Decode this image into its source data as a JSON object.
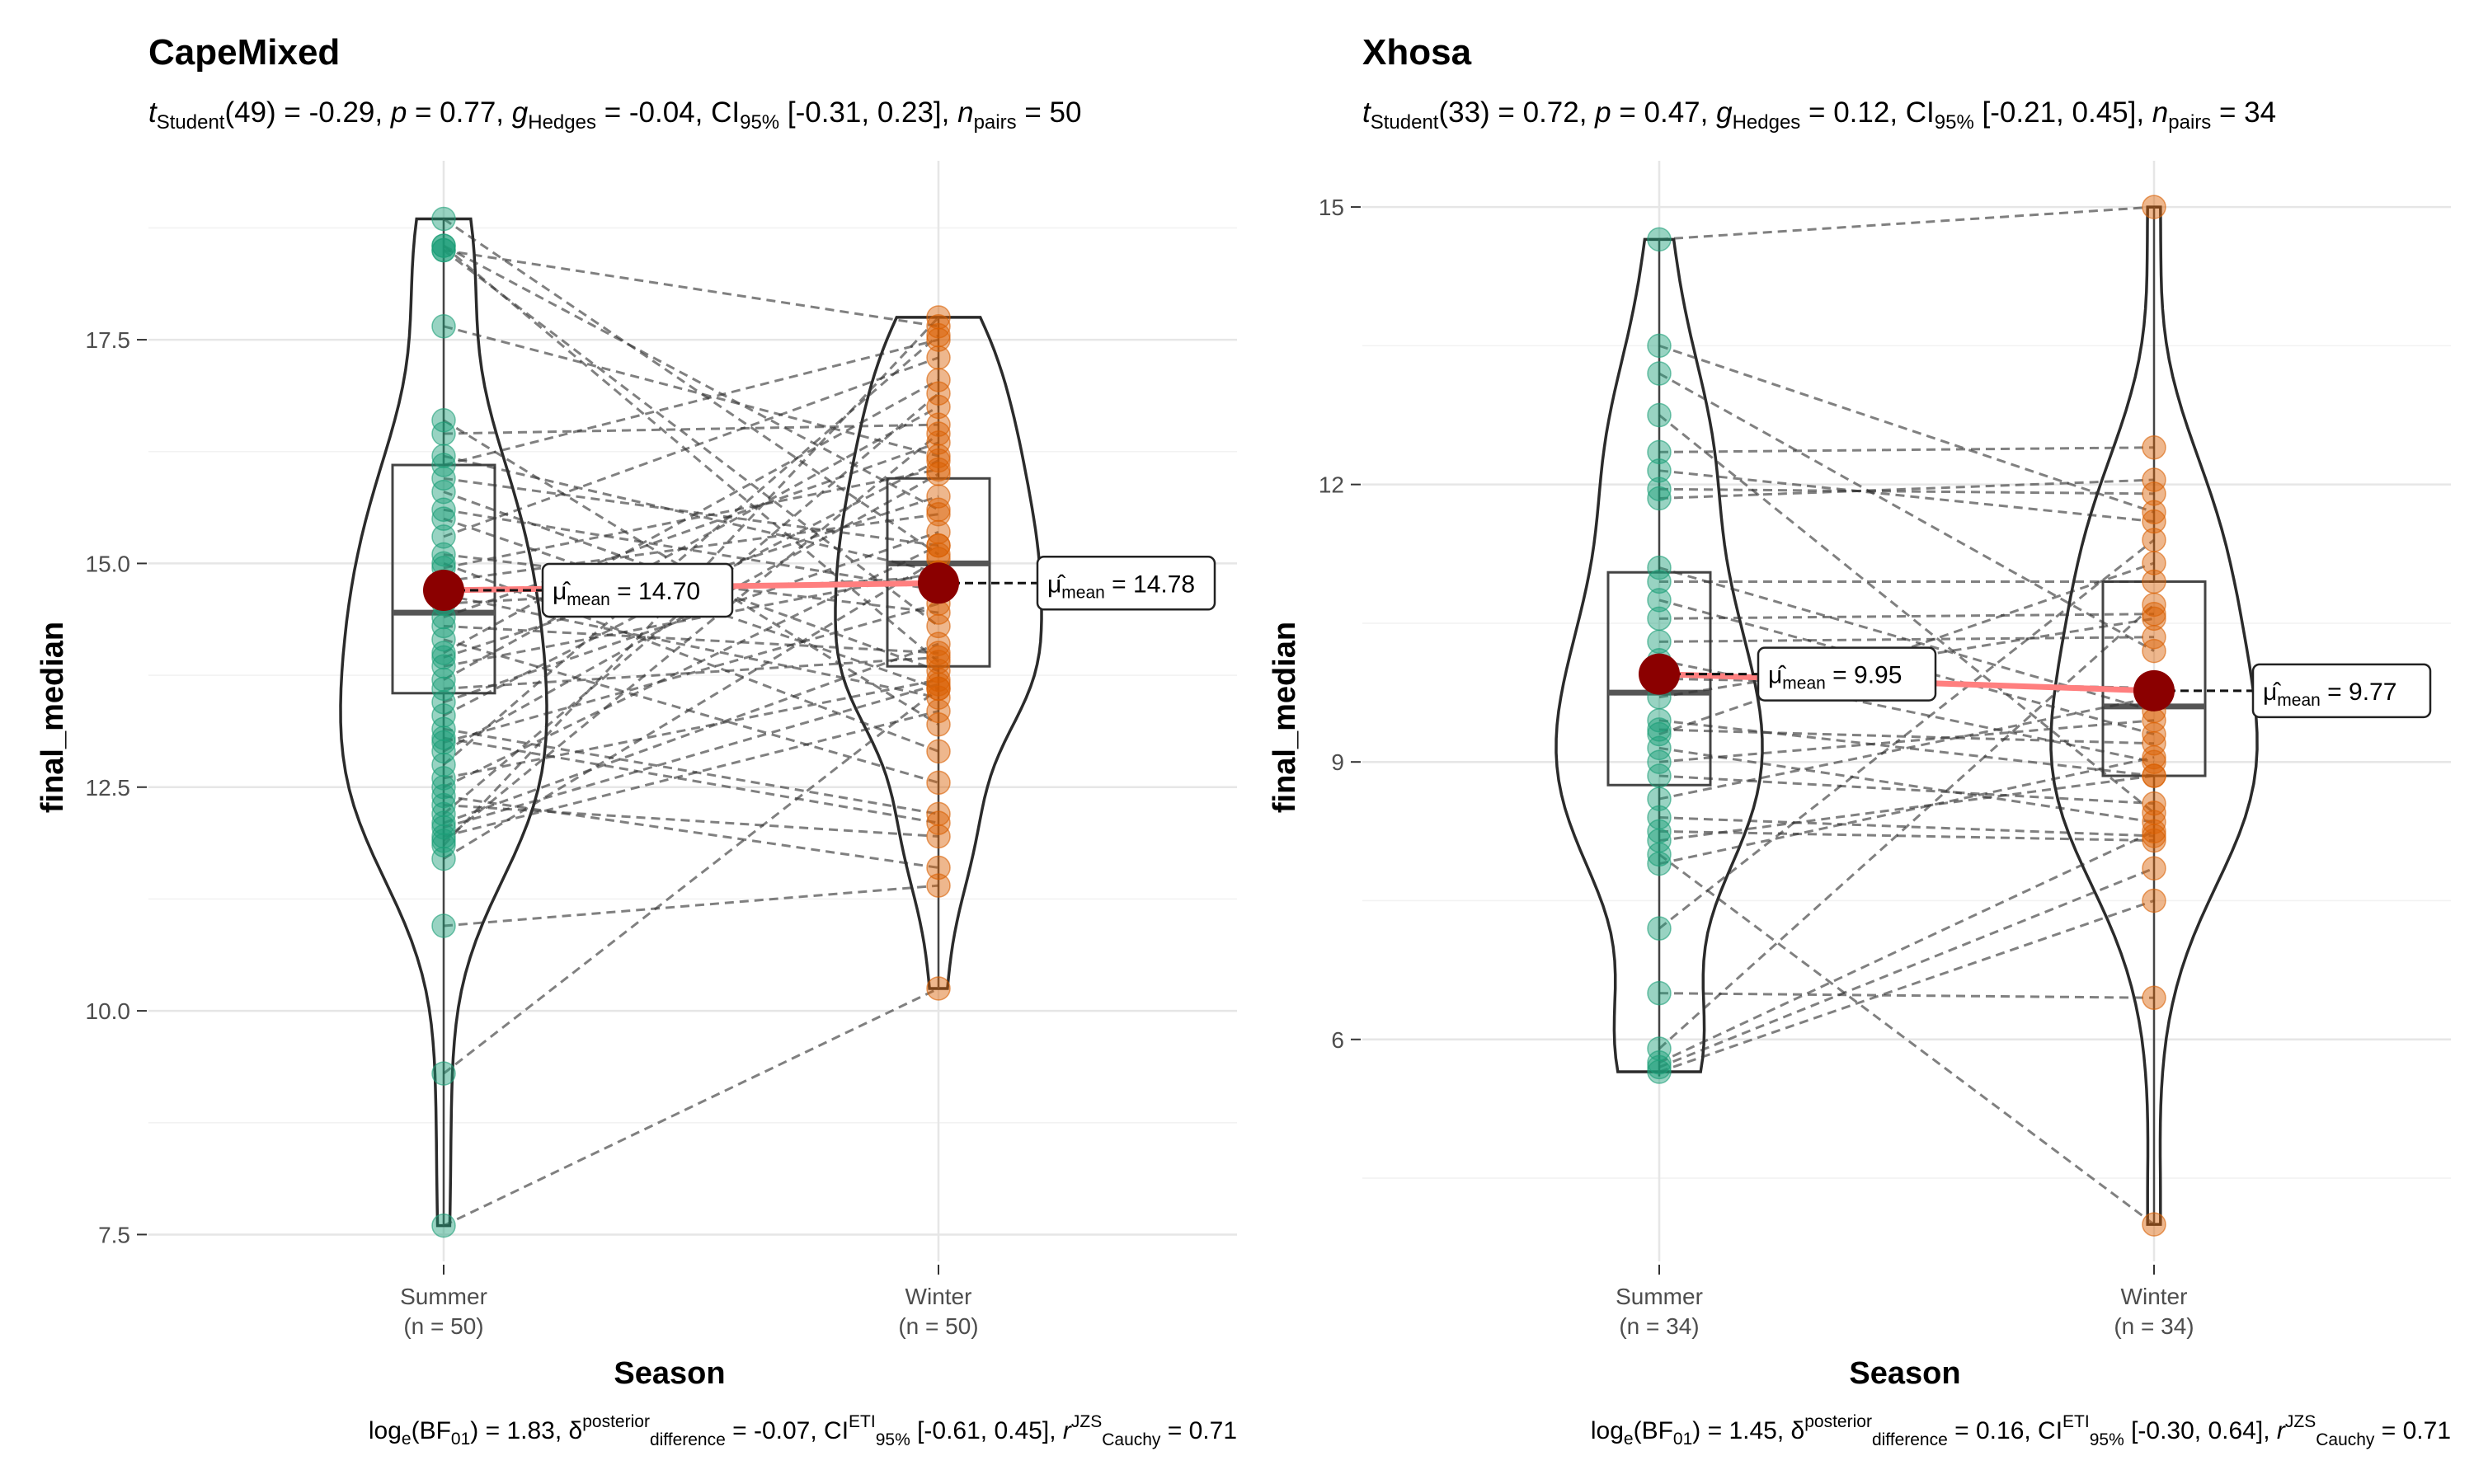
{
  "chart_data": [
    {
      "type": "violin-box-paired",
      "title": "CapeMixed",
      "subtitle": {
        "stat": "t",
        "stat_sub": "Student",
        "df": "(49) = -0.29, ",
        "p_prefix": "p",
        "p_text": " = 0.77, ",
        "es": "g",
        "es_sub": "Hedges",
        "es_text": " = -0.04, CI",
        "ci_sub": "95%",
        "ci_text": " [-0.31, 0.23], ",
        "n": "n",
        "n_sub": "pairs",
        "n_text": " = 50"
      },
      "caption": {
        "bf_prefix": "log",
        "bf_sub": "e",
        "bf_text": "(BF",
        "bf_idx": "01",
        "bf_val": ") = 1.83, ",
        "delta": "δ",
        "delta_sup": "posterior",
        "delta_sub": "difference",
        "delta_val": " = -0.07, CI",
        "ci_sup": "ETI",
        "ci_sub": "95%",
        "ci_val": " [-0.61, 0.45], ",
        "r": "r",
        "r_sup": "JZS",
        "r_sub": "Cauchy",
        "r_val": " = 0.71"
      },
      "xlabel": "Season",
      "ylabel": "final_median",
      "ylim": [
        7.2,
        19.5
      ],
      "yticks": [
        7.5,
        10.0,
        12.5,
        15.0,
        17.5
      ],
      "ytick_labels": [
        "7.5",
        "10.0",
        "12.5",
        "15.0",
        "17.5"
      ],
      "categories": [
        "Summer",
        "Winter"
      ],
      "category_n": [
        "(n = 50)",
        "(n = 50)"
      ],
      "colors": [
        "#1B9E77",
        "#D95F02"
      ],
      "box": [
        {
          "q1": 13.55,
          "median": 14.45,
          "q3": 16.1,
          "whisker_low": 7.6,
          "whisker_high": 18.85
        },
        {
          "q1": 13.85,
          "median": 15.0,
          "q3": 15.95,
          "whisker_low": 10.25,
          "whisker_high": 17.75
        }
      ],
      "means": [
        14.7,
        14.78
      ],
      "mean_labels": [
        "= 14.70",
        "= 14.78"
      ],
      "pairs": [
        [
          18.85,
          15.1
        ],
        [
          18.55,
          13.9
        ],
        [
          18.5,
          17.65
        ],
        [
          18.55,
          15.6
        ],
        [
          18.5,
          14.3
        ],
        [
          17.65,
          16.2
        ],
        [
          16.6,
          13.2
        ],
        [
          16.45,
          16.55
        ],
        [
          16.2,
          14.9
        ],
        [
          16.1,
          17.5
        ],
        [
          15.95,
          15.2
        ],
        [
          15.8,
          13.8
        ],
        [
          15.6,
          14.7
        ],
        [
          15.5,
          13.6
        ],
        [
          15.3,
          17.3
        ],
        [
          15.1,
          14.45
        ],
        [
          15.0,
          12.9
        ],
        [
          14.95,
          16.05
        ],
        [
          14.8,
          15.55
        ],
        [
          14.65,
          13.5
        ],
        [
          14.4,
          16.35
        ],
        [
          14.3,
          14.0
        ],
        [
          14.15,
          12.55
        ],
        [
          14.0,
          17.05
        ],
        [
          13.95,
          15.75
        ],
        [
          13.85,
          14.9
        ],
        [
          13.7,
          16.75
        ],
        [
          13.6,
          13.95
        ],
        [
          13.45,
          15.35
        ],
        [
          13.3,
          16.15
        ],
        [
          13.15,
          12.2
        ],
        [
          13.0,
          14.55
        ],
        [
          12.9,
          16.0
        ],
        [
          12.75,
          17.55
        ],
        [
          12.6,
          13.7
        ],
        [
          12.5,
          15.2
        ],
        [
          12.3,
          11.95
        ],
        [
          12.2,
          16.9
        ],
        [
          12.1,
          14.1
        ],
        [
          11.95,
          13.35
        ],
        [
          11.85,
          17.75
        ],
        [
          11.7,
          15.05
        ],
        [
          11.9,
          16.45
        ],
        [
          12.05,
          13.65
        ],
        [
          12.4,
          11.6
        ],
        [
          10.95,
          11.4
        ],
        [
          9.3,
          13.6
        ],
        [
          7.6,
          10.25
        ],
        [
          14.55,
          14.85
        ],
        [
          13.05,
          12.1
        ]
      ]
    },
    {
      "type": "violin-box-paired",
      "title": "Xhosa",
      "subtitle": {
        "stat": "t",
        "stat_sub": "Student",
        "df": "(33) = 0.72, ",
        "p_prefix": "p",
        "p_text": " = 0.47, ",
        "es": "g",
        "es_sub": "Hedges",
        "es_text": " = 0.12, CI",
        "ci_sub": "95%",
        "ci_text": " [-0.21, 0.45], ",
        "n": "n",
        "n_sub": "pairs",
        "n_text": " = 34"
      },
      "caption": {
        "bf_prefix": "log",
        "bf_sub": "e",
        "bf_text": "(BF",
        "bf_idx": "01",
        "bf_val": ") = 1.45, ",
        "delta": "δ",
        "delta_sup": "posterior",
        "delta_sub": "difference",
        "delta_val": " = 0.16, CI",
        "ci_sup": "ETI",
        "ci_sub": "95%",
        "ci_val": " [-0.30, 0.64], ",
        "r": "r",
        "r_sup": "JZS",
        "r_sub": "Cauchy",
        "r_val": " = 0.71"
      },
      "xlabel": "Season",
      "ylabel": "final_median",
      "ylim": [
        3.6,
        15.5
      ],
      "yticks": [
        6,
        9,
        12,
        15
      ],
      "ytick_labels": [
        "6",
        "9",
        "12",
        "15"
      ],
      "categories": [
        "Summer",
        "Winter"
      ],
      "category_n": [
        "(n = 34)",
        "(n = 34)"
      ],
      "colors": [
        "#1B9E77",
        "#D95F02"
      ],
      "box": [
        {
          "q1": 8.75,
          "median": 9.75,
          "q3": 11.05,
          "whisker_low": 5.6,
          "whisker_high": 14.65
        },
        {
          "q1": 8.85,
          "median": 9.6,
          "q3": 10.95,
          "whisker_low": 4.0,
          "whisker_high": 15.0
        }
      ],
      "means": [
        9.95,
        9.77
      ],
      "mean_labels": [
        "= 9.95",
        "= 9.77"
      ],
      "pairs": [
        [
          14.65,
          15.0
        ],
        [
          13.5,
          11.7
        ],
        [
          13.2,
          10.2
        ],
        [
          12.75,
          8.45
        ],
        [
          12.35,
          12.4
        ],
        [
          12.15,
          11.6
        ],
        [
          11.95,
          11.9
        ],
        [
          11.85,
          12.05
        ],
        [
          11.1,
          9.55
        ],
        [
          10.95,
          10.95
        ],
        [
          10.75,
          9.3
        ],
        [
          10.55,
          10.6
        ],
        [
          10.3,
          10.35
        ],
        [
          10.1,
          9.0
        ],
        [
          9.9,
          9.8
        ],
        [
          9.7,
          10.55
        ],
        [
          9.45,
          8.85
        ],
        [
          9.3,
          11.15
        ],
        [
          9.15,
          8.35
        ],
        [
          9.0,
          9.45
        ],
        [
          8.85,
          8.55
        ],
        [
          8.6,
          9.7
        ],
        [
          8.4,
          8.2
        ],
        [
          8.25,
          8.15
        ],
        [
          8.15,
          8.85
        ],
        [
          7.2,
          11.4
        ],
        [
          5.9,
          10.7
        ],
        [
          5.75,
          8.25
        ],
        [
          5.7,
          7.85
        ],
        [
          5.65,
          7.5
        ],
        [
          6.5,
          6.45
        ],
        [
          8.0,
          4.0
        ],
        [
          7.9,
          9.05
        ],
        [
          9.35,
          9.2
        ]
      ]
    }
  ]
}
